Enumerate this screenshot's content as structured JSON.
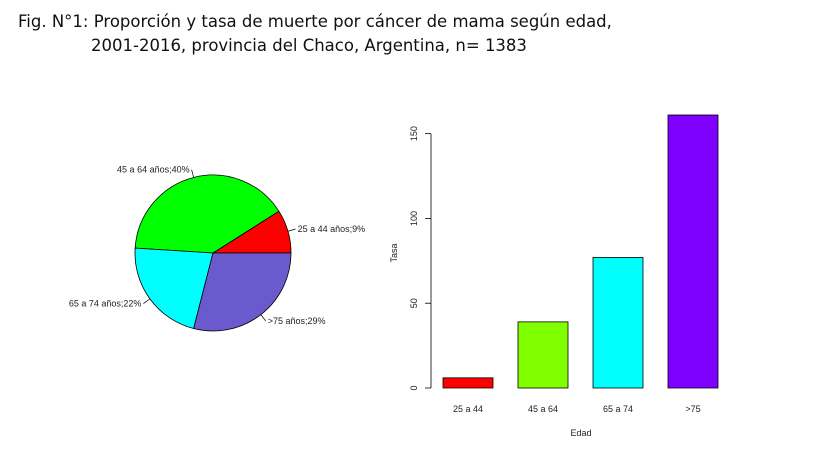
{
  "figure": {
    "title_line1": "Fig. N°1: Proporción y tasa de muerte por cáncer de mama según edad,",
    "title_line2": "2001-2016, provincia del Chaco, Argentina, n= 1383"
  },
  "chart_data": [
    {
      "type": "pie",
      "title": "",
      "slices": [
        {
          "label": "25 a 44 años;9%",
          "value": 9,
          "color": "#ff0000"
        },
        {
          "label": "45 a 64 años;40%",
          "value": 40,
          "color": "#00ff00"
        },
        {
          "label": "65 a 74 años;22%",
          "value": 22,
          "color": "#00ffff"
        },
        {
          "label": ">75 años;29%",
          "value": 29,
          "color": "#6a5acd"
        }
      ],
      "start": "3 o'clock",
      "direction": "counterclockwise"
    },
    {
      "type": "bar",
      "title": "",
      "categories": [
        "25 a 44",
        "45 a 64",
        "65 a 74",
        ">75"
      ],
      "values": [
        6,
        39,
        77,
        161
      ],
      "colors": [
        "#ff0000",
        "#80ff00",
        "#00ffff",
        "#8000ff"
      ],
      "xlabel": "Edad",
      "ylabel": "Tasa",
      "ylim": [
        0,
        161
      ],
      "yticks": [
        0,
        50,
        100,
        150
      ],
      "grid": false,
      "legend": "none"
    }
  ]
}
